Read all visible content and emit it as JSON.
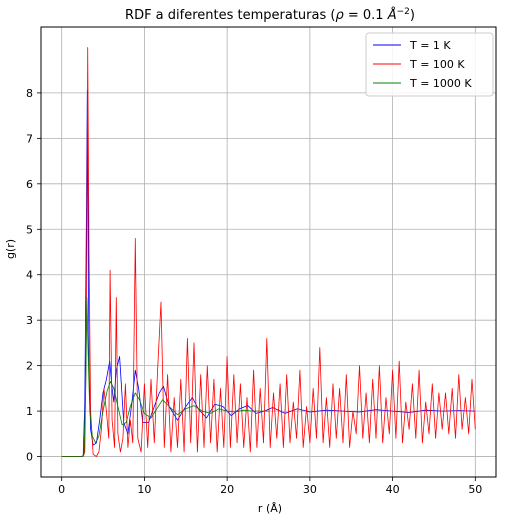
{
  "chart_data": {
    "type": "line",
    "title": "RDF a diferentes temperaturas (ρ = 0.1 Å⁻²)",
    "title_main": "RDF a diferentes temperaturas (",
    "title_rho": "ρ",
    "title_eq": " = 0.1 ",
    "title_unit": "Å",
    "title_exp": "−2",
    "title_close": ")",
    "xlabel": "r (Å)",
    "ylabel": "g(r)",
    "xlim": [
      -2.5,
      52.5
    ],
    "ylim": [
      -0.45,
      9.45
    ],
    "xticks": [
      0,
      10,
      20,
      30,
      40,
      50
    ],
    "yticks": [
      0,
      1,
      2,
      3,
      4,
      5,
      6,
      7,
      8
    ],
    "grid": true,
    "legend_position": "top-right",
    "series": [
      {
        "name": "T = 1 K",
        "color": "#0000ff",
        "x": [
          0,
          2.4,
          2.6,
          2.8,
          3.0,
          3.1,
          3.2,
          3.3,
          3.5,
          3.8,
          4.2,
          4.6,
          5.0,
          5.4,
          5.8,
          6.1,
          6.3,
          6.6,
          7.0,
          7.5,
          8.0,
          8.5,
          8.9,
          9.3,
          9.8,
          10.5,
          11.2,
          11.8,
          12.3,
          13.0,
          14.0,
          15.0,
          15.8,
          16.5,
          17.5,
          18.5,
          19.5,
          20.5,
          21.5,
          22.5,
          23.5,
          24.5,
          25.5,
          27,
          28.5,
          30,
          32,
          34,
          36,
          38,
          40,
          42,
          44,
          46,
          48,
          50
        ],
        "y": [
          0,
          0,
          0.02,
          1.2,
          5.5,
          8.05,
          5.0,
          2.0,
          0.6,
          0.25,
          0.3,
          0.8,
          1.4,
          1.7,
          2.1,
          1.5,
          1.2,
          1.9,
          2.2,
          0.75,
          0.5,
          1.2,
          1.9,
          1.5,
          0.75,
          0.75,
          1.1,
          1.4,
          1.55,
          1.1,
          0.8,
          1.1,
          1.3,
          1.05,
          0.85,
          1.15,
          1.1,
          0.9,
          1.05,
          1.12,
          0.95,
          1.0,
          1.08,
          0.95,
          1.05,
          0.98,
          1.02,
          1.0,
          0.98,
          1.03,
          1.0,
          0.97,
          1.02,
          1.0,
          1.01,
          1.0
        ]
      },
      {
        "name": "T = 100 K",
        "color": "#ff0000",
        "x": [
          0,
          2.6,
          2.8,
          3.0,
          3.15,
          3.3,
          3.5,
          3.8,
          4.2,
          4.5,
          4.8,
          5.1,
          5.4,
          5.7,
          5.85,
          6.1,
          6.4,
          6.6,
          6.8,
          7.1,
          7.4,
          7.7,
          8.0,
          8.3,
          8.6,
          8.9,
          9.2,
          9.6,
          10.0,
          10.4,
          10.8,
          11.2,
          11.6,
          12.0,
          12.4,
          12.8,
          13.2,
          13.6,
          14.0,
          14.4,
          14.8,
          15.2,
          15.6,
          16.0,
          16.4,
          16.8,
          17.2,
          17.6,
          18.0,
          18.4,
          18.8,
          19.2,
          19.6,
          20.0,
          20.4,
          20.8,
          21.2,
          21.6,
          22.0,
          22.4,
          22.8,
          23.2,
          23.6,
          24.0,
          24.4,
          24.8,
          25.2,
          25.6,
          26.0,
          26.4,
          26.8,
          27.2,
          27.6,
          28.0,
          28.4,
          28.8,
          29.2,
          29.6,
          30.0,
          30.4,
          30.8,
          31.2,
          31.6,
          32.0,
          32.4,
          32.8,
          33.2,
          33.6,
          34.0,
          34.4,
          34.8,
          35.2,
          35.6,
          36.0,
          36.4,
          36.8,
          37.2,
          37.6,
          38.0,
          38.4,
          38.8,
          39.2,
          39.6,
          40.0,
          40.4,
          40.8,
          41.2,
          41.6,
          42.0,
          42.4,
          42.8,
          43.2,
          43.6,
          44.0,
          44.4,
          44.8,
          45.2,
          45.6,
          46.0,
          46.4,
          46.8,
          47.2,
          47.6,
          48.0,
          48.4,
          48.8,
          49.2,
          49.6,
          50.0
        ],
        "y": [
          0,
          0,
          0.1,
          3.0,
          9.0,
          4.5,
          1.0,
          0.05,
          0,
          0.1,
          0.6,
          1.5,
          1.0,
          0.4,
          4.1,
          0.8,
          0.2,
          3.5,
          0.5,
          0.1,
          0.4,
          1.6,
          0.2,
          0.8,
          0.3,
          4.8,
          0.4,
          0.1,
          1.6,
          0.2,
          1.7,
          0.3,
          1.9,
          3.4,
          0.2,
          1.8,
          0.1,
          1.3,
          0.2,
          1.7,
          0.1,
          2.6,
          0.3,
          2.5,
          0.1,
          1.8,
          0.2,
          2.0,
          0.3,
          1.7,
          0.1,
          1.5,
          0.2,
          2.2,
          0.2,
          1.8,
          0.3,
          1.6,
          0.2,
          1.3,
          0.1,
          1.9,
          0.2,
          1.5,
          0.3,
          2.6,
          0.2,
          1.4,
          0.4,
          1.6,
          0.2,
          1.8,
          0.3,
          1.2,
          0.4,
          1.9,
          0.2,
          1.1,
          0.3,
          1.5,
          0.4,
          2.4,
          0.3,
          1.3,
          0.2,
          1.6,
          0.4,
          1.5,
          0.3,
          1.8,
          0.2,
          1.0,
          0.5,
          2.0,
          0.4,
          1.4,
          0.3,
          1.7,
          0.4,
          2.0,
          0.3,
          1.3,
          0.5,
          1.9,
          0.4,
          2.1,
          0.3,
          1.2,
          0.6,
          1.6,
          0.4,
          1.9,
          0.3,
          1.2,
          0.5,
          1.6,
          0.4,
          1.4,
          0.6,
          1.4,
          0.5,
          1.5,
          0.4,
          1.8,
          0.6,
          1.3,
          0.5,
          1.7,
          0.6
        ]
      },
      {
        "name": "T = 1000 K",
        "color": "#008000",
        "x": [
          0,
          2.5,
          2.7,
          2.9,
          3.05,
          3.2,
          3.4,
          3.7,
          4.1,
          4.5,
          5.0,
          5.5,
          5.9,
          6.3,
          6.8,
          7.3,
          7.8,
          8.3,
          8.9,
          9.4,
          10.0,
          10.8,
          11.5,
          12.2,
          13.0,
          14.0,
          15.0,
          16.0,
          17.0,
          18.0,
          19.0,
          20.0,
          21.0,
          22.0,
          23.0,
          24.0,
          25.0
        ],
        "y": [
          0,
          0,
          0.05,
          1.5,
          3.5,
          2.2,
          1.0,
          0.45,
          0.3,
          0.45,
          1.0,
          1.45,
          1.65,
          1.5,
          1.1,
          0.7,
          0.75,
          1.1,
          1.4,
          1.25,
          0.95,
          0.85,
          1.05,
          1.25,
          1.1,
          0.92,
          1.05,
          1.12,
          1.0,
          0.95,
          1.05,
          1.0,
          0.98,
          1.02,
          1.0,
          1.0,
          1.0
        ]
      }
    ]
  }
}
